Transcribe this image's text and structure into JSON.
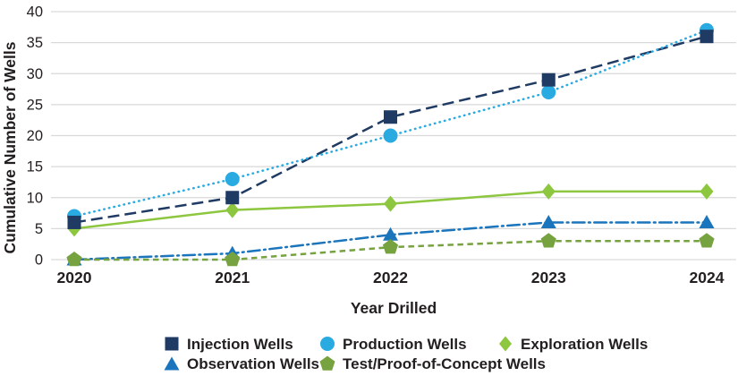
{
  "colors": {
    "background": "#ffffff",
    "grid": "#d9d9d9",
    "text": "#231f20"
  },
  "chart_data": {
    "type": "line",
    "title": "",
    "xlabel": "Year Drilled",
    "ylabel": "Cumulative Number of Wells",
    "categories": [
      "2020",
      "2021",
      "2022",
      "2023",
      "2024"
    ],
    "ylim": [
      0,
      40
    ],
    "ytick_step": 5,
    "grid": "horizontal",
    "legend_position": "bottom",
    "series": [
      {
        "name": "Injection Wells",
        "marker": "square",
        "line_style": "dashed",
        "color": "#1f3a63",
        "values": [
          6,
          10,
          23,
          29,
          36
        ]
      },
      {
        "name": "Production Wells",
        "marker": "circle",
        "line_style": "dotted",
        "color": "#29abe2",
        "values": [
          7,
          13,
          20,
          27,
          37
        ]
      },
      {
        "name": "Exploration Wells",
        "marker": "diamond",
        "line_style": "solid",
        "color": "#8dc63f",
        "values": [
          5,
          8,
          9,
          11,
          11
        ]
      },
      {
        "name": "Observation Wells",
        "marker": "triangle",
        "line_style": "dash-dot",
        "color": "#1b75bc",
        "values": [
          0,
          1,
          4,
          6,
          6
        ]
      },
      {
        "name": "Test/Proof-of-Concept Wells",
        "marker": "pentagon",
        "line_style": "short-dash",
        "color": "#76a240",
        "values": [
          0,
          0,
          2,
          3,
          3
        ]
      }
    ]
  }
}
